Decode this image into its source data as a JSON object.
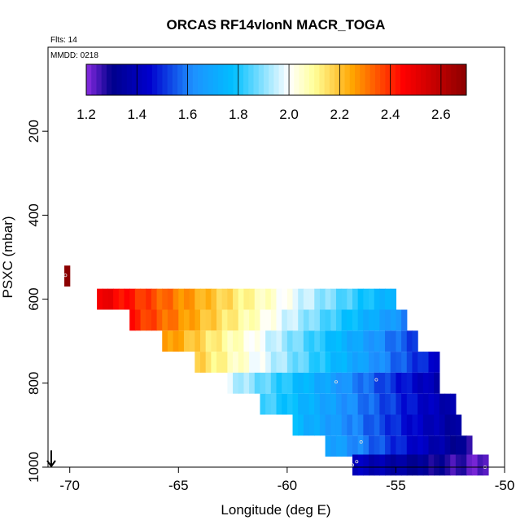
{
  "chart_data": {
    "type": "heatmap",
    "title": "ORCAS RF14vlonN MACR_TOGA",
    "flights_label": "Flts: 14",
    "date_label": "MMDD: 0218",
    "xlabel": "Longitude (deg E)",
    "ylabel": "PSXC (mbar)",
    "xlim": [
      -71,
      -50
    ],
    "ylim": [
      1000,
      0
    ],
    "x_ticks": [
      -70,
      -65,
      -60,
      -55,
      -50
    ],
    "x_tick_labels": [
      "-70",
      "-65",
      "-60",
      "-55",
      "-50"
    ],
    "y_ticks": [
      200,
      400,
      600,
      800,
      1000
    ],
    "y_tick_labels": [
      "200",
      "400",
      "600",
      "800",
      "1000"
    ],
    "colorbar": {
      "range": [
        1.2,
        2.7
      ],
      "ticks": [
        1.2,
        1.4,
        1.6,
        1.8,
        2.0,
        2.2,
        2.4,
        2.6
      ],
      "tick_labels": [
        "1.2",
        "1.4",
        "1.6",
        "1.8",
        "2.0",
        "2.2",
        "2.4",
        "2.6"
      ],
      "gradient": [
        "#8a2be2",
        "#00008b",
        "#0000cd",
        "#1e90ff",
        "#00bfff",
        "#ffffff",
        "#ffff99",
        "#ffa500",
        "#ff0000",
        "#8b0000"
      ],
      "gradient_stops": [
        1.2,
        1.3,
        1.45,
        1.62,
        1.78,
        2.0,
        2.1,
        2.25,
        2.45,
        2.7
      ],
      "bin_edges": [
        1.2,
        1.4,
        1.6,
        1.8,
        2.0,
        2.2,
        2.4,
        2.6
      ]
    },
    "rows": [
      {
        "pressure": 545,
        "lon_start": -70.25,
        "lon_end": -70.0,
        "val_start": 2.68,
        "val_end": 2.68
      },
      {
        "pressure": 600,
        "lon_start": -68.75,
        "lon_end": -55.0,
        "val_start": 2.5,
        "val_end": 1.72
      },
      {
        "pressure": 650,
        "lon_start": -67.25,
        "lon_end": -54.5,
        "val_start": 2.42,
        "val_end": 1.62
      },
      {
        "pressure": 700,
        "lon_start": -65.75,
        "lon_end": -54.0,
        "val_start": 2.28,
        "val_end": 1.52
      },
      {
        "pressure": 750,
        "lon_start": -64.25,
        "lon_end": -53.0,
        "val_start": 2.18,
        "val_end": 1.45
      },
      {
        "pressure": 800,
        "lon_start": -62.75,
        "lon_end": -53.0,
        "val_start": 1.96,
        "val_end": 1.38
      },
      {
        "pressure": 850,
        "lon_start": -61.25,
        "lon_end": -52.25,
        "val_start": 1.85,
        "val_end": 1.36
      },
      {
        "pressure": 900,
        "lon_start": -59.75,
        "lon_end": -52.0,
        "val_start": 1.76,
        "val_end": 1.33
      },
      {
        "pressure": 950,
        "lon_start": -58.25,
        "lon_end": -51.5,
        "val_start": 1.7,
        "val_end": 1.28
      },
      {
        "pressure": 995,
        "lon_start": -57.0,
        "lon_end": -50.75,
        "val_start": 1.42,
        "val_end": 1.22
      }
    ],
    "markers": [
      {
        "lon": -70.2,
        "pressure": 543
      },
      {
        "lon": -57.75,
        "pressure": 797
      },
      {
        "lon": -55.9,
        "pressure": 792
      },
      {
        "lon": -56.6,
        "pressure": 940
      },
      {
        "lon": -56.8,
        "pressure": 987
      },
      {
        "lon": -57.0,
        "pressure": 995
      },
      {
        "lon": -50.9,
        "pressure": 1000
      }
    ],
    "arrow": {
      "lon": -70.85,
      "pressure_from": 960,
      "pressure_to": 1000
    }
  }
}
